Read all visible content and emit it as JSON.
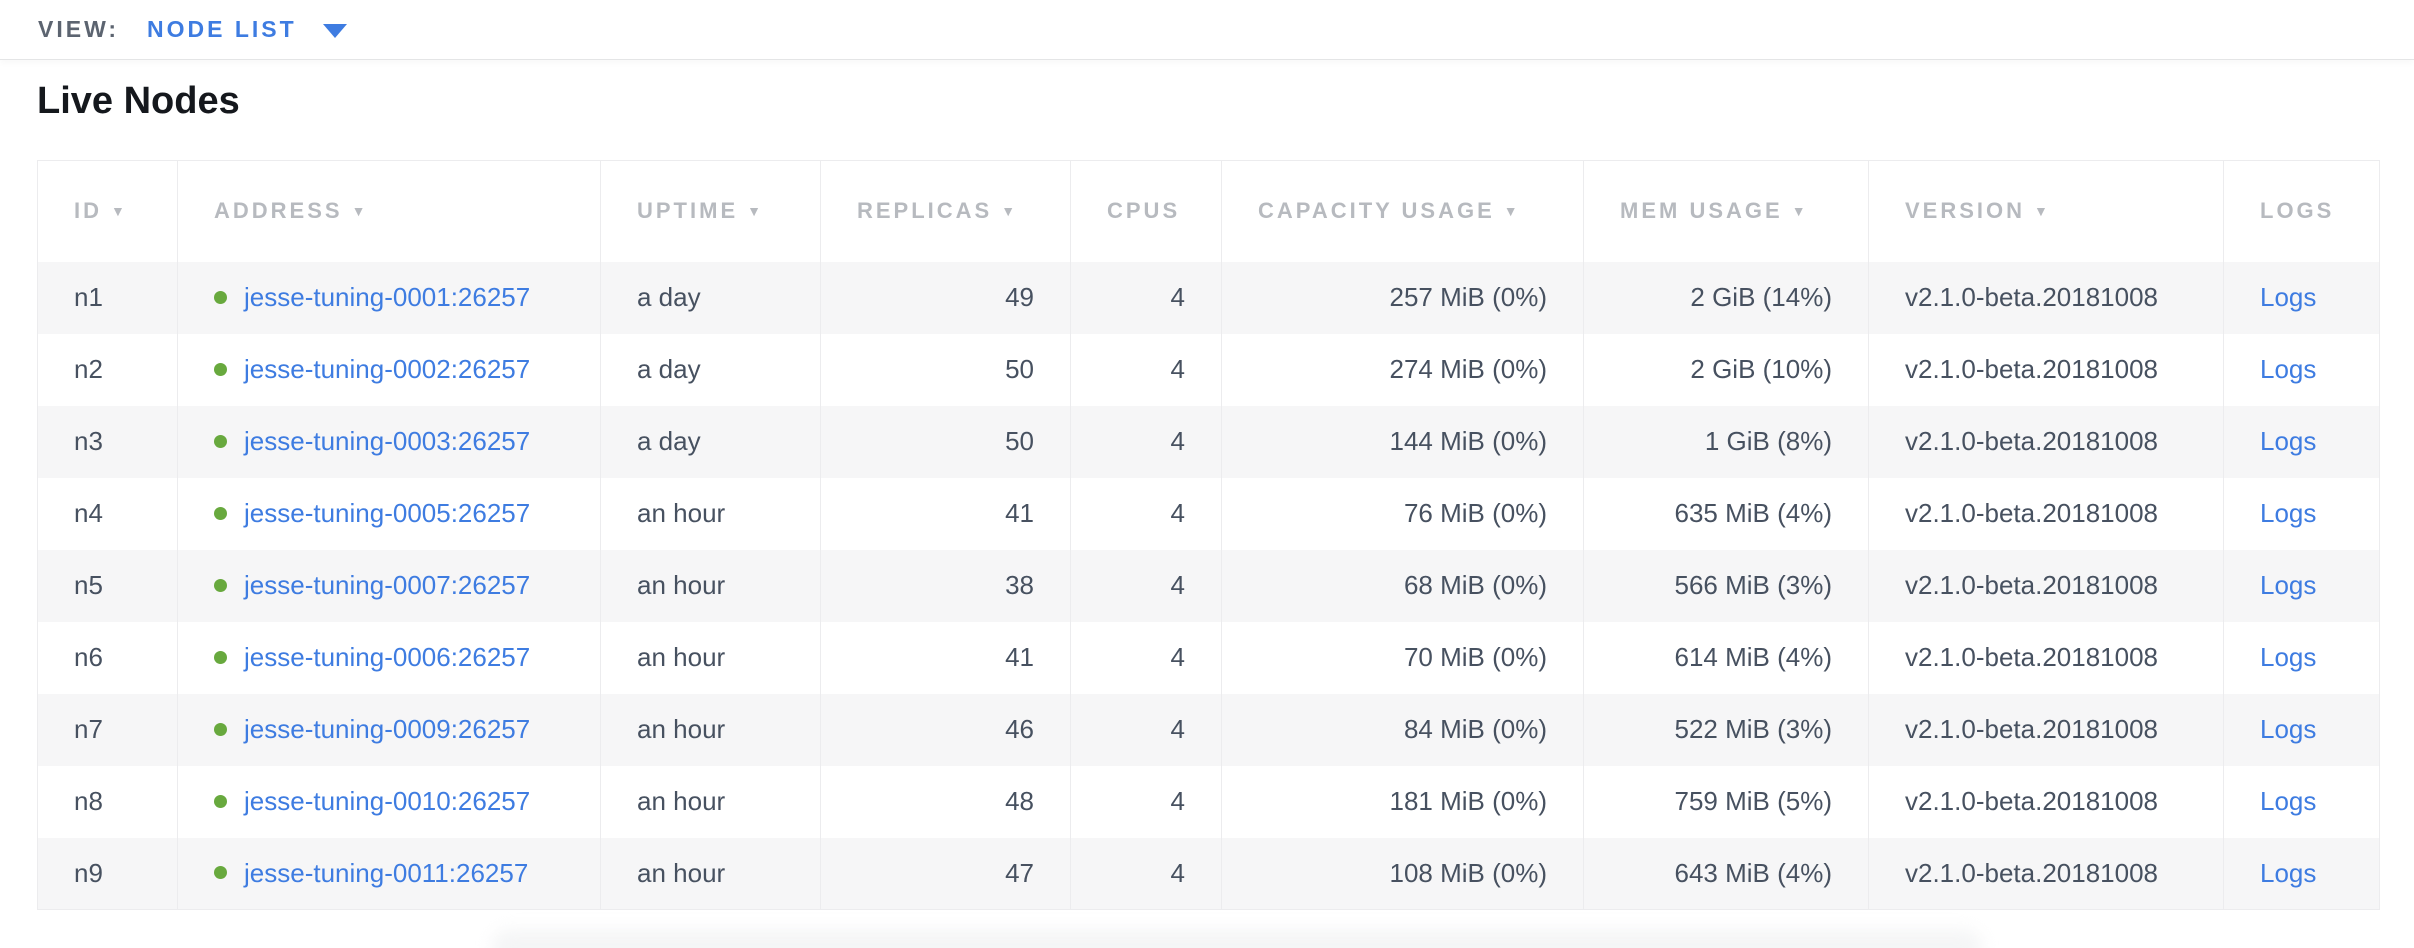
{
  "view_bar": {
    "label": "VIEW:",
    "selected": "NODE LIST"
  },
  "page": {
    "title": "Live Nodes"
  },
  "table": {
    "columns": [
      {
        "label": "ID",
        "sortable": true
      },
      {
        "label": "ADDRESS",
        "sortable": true
      },
      {
        "label": "UPTIME",
        "sortable": true
      },
      {
        "label": "REPLICAS",
        "sortable": true
      },
      {
        "label": "CPUS",
        "sortable": false
      },
      {
        "label": "CAPACITY USAGE",
        "sortable": true
      },
      {
        "label": "MEM USAGE",
        "sortable": true
      },
      {
        "label": "VERSION",
        "sortable": true
      },
      {
        "label": "LOGS",
        "sortable": false
      }
    ],
    "sort_indicator": "▼",
    "rows": [
      {
        "id": "n1",
        "address": "jesse-tuning-0001:26257",
        "uptime": "a day",
        "replicas": "49",
        "cpus": "4",
        "capacity": "257 MiB (0%)",
        "mem": "2 GiB (14%)",
        "version": "v2.1.0-beta.20181008",
        "logs": "Logs"
      },
      {
        "id": "n2",
        "address": "jesse-tuning-0002:26257",
        "uptime": "a day",
        "replicas": "50",
        "cpus": "4",
        "capacity": "274 MiB (0%)",
        "mem": "2 GiB (10%)",
        "version": "v2.1.0-beta.20181008",
        "logs": "Logs"
      },
      {
        "id": "n3",
        "address": "jesse-tuning-0003:26257",
        "uptime": "a day",
        "replicas": "50",
        "cpus": "4",
        "capacity": "144 MiB (0%)",
        "mem": "1 GiB (8%)",
        "version": "v2.1.0-beta.20181008",
        "logs": "Logs"
      },
      {
        "id": "n4",
        "address": "jesse-tuning-0005:26257",
        "uptime": "an hour",
        "replicas": "41",
        "cpus": "4",
        "capacity": "76 MiB (0%)",
        "mem": "635 MiB (4%)",
        "version": "v2.1.0-beta.20181008",
        "logs": "Logs"
      },
      {
        "id": "n5",
        "address": "jesse-tuning-0007:26257",
        "uptime": "an hour",
        "replicas": "38",
        "cpus": "4",
        "capacity": "68 MiB (0%)",
        "mem": "566 MiB (3%)",
        "version": "v2.1.0-beta.20181008",
        "logs": "Logs"
      },
      {
        "id": "n6",
        "address": "jesse-tuning-0006:26257",
        "uptime": "an hour",
        "replicas": "41",
        "cpus": "4",
        "capacity": "70 MiB (0%)",
        "mem": "614 MiB (4%)",
        "version": "v2.1.0-beta.20181008",
        "logs": "Logs"
      },
      {
        "id": "n7",
        "address": "jesse-tuning-0009:26257",
        "uptime": "an hour",
        "replicas": "46",
        "cpus": "4",
        "capacity": "84 MiB (0%)",
        "mem": "522 MiB (3%)",
        "version": "v2.1.0-beta.20181008",
        "logs": "Logs"
      },
      {
        "id": "n8",
        "address": "jesse-tuning-0010:26257",
        "uptime": "an hour",
        "replicas": "48",
        "cpus": "4",
        "capacity": "181 MiB (0%)",
        "mem": "759 MiB (5%)",
        "version": "v2.1.0-beta.20181008",
        "logs": "Logs"
      },
      {
        "id": "n9",
        "address": "jesse-tuning-0011:26257",
        "uptime": "an hour",
        "replicas": "47",
        "cpus": "4",
        "capacity": "108 MiB (0%)",
        "mem": "643 MiB (4%)",
        "version": "v2.1.0-beta.20181008",
        "logs": "Logs"
      }
    ]
  },
  "colors": {
    "link_blue": "#3e7ce1",
    "status_green": "#68a93e",
    "header_gray": "#b7babf",
    "cell_text": "#475160",
    "zebra_row": "#f6f6f7"
  }
}
